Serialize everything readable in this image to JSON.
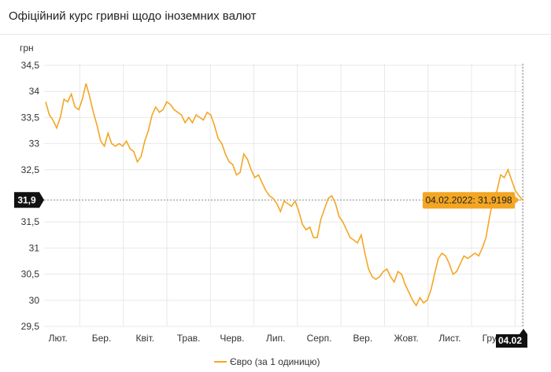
{
  "header": {
    "title": "Офіційний курс гривні щодо іноземних валют"
  },
  "chart_data": {
    "type": "line",
    "ylabel": "грн",
    "ylim": [
      29.5,
      34.5
    ],
    "y_ticks": [
      "34,5",
      "34",
      "33,5",
      "33",
      "32,5",
      "31,5",
      "31",
      "30,5",
      "30",
      "29,5"
    ],
    "y_tick_values": [
      34.5,
      34,
      33.5,
      33,
      32.5,
      31.5,
      31,
      30.5,
      30,
      29.5
    ],
    "x_ticks": [
      "Лют.",
      "Бер.",
      "Квіт.",
      "Трав.",
      "Черв.",
      "Лип.",
      "Серп.",
      "Вер.",
      "Жовт.",
      "Лист.",
      "Груд."
    ],
    "grid": true,
    "legend_position": "bottom",
    "series": [
      {
        "name": "Євро (за 1 одиницю)",
        "color": "#f4a623",
        "values": [
          33.8,
          33.55,
          33.45,
          33.3,
          33.5,
          33.85,
          33.8,
          33.95,
          33.7,
          33.65,
          33.85,
          34.15,
          33.9,
          33.6,
          33.35,
          33.05,
          32.95,
          33.2,
          33.0,
          32.95,
          33.0,
          32.95,
          33.05,
          32.9,
          32.85,
          32.65,
          32.75,
          33.05,
          33.25,
          33.55,
          33.7,
          33.6,
          33.65,
          33.8,
          33.75,
          33.65,
          33.6,
          33.55,
          33.4,
          33.5,
          33.4,
          33.55,
          33.5,
          33.45,
          33.6,
          33.55,
          33.35,
          33.1,
          33.0,
          32.8,
          32.65,
          32.6,
          32.4,
          32.45,
          32.8,
          32.7,
          32.5,
          32.35,
          32.4,
          32.25,
          32.1,
          32.0,
          31.95,
          31.85,
          31.7,
          31.9,
          31.85,
          31.8,
          31.9,
          31.7,
          31.45,
          31.35,
          31.4,
          31.2,
          31.2,
          31.55,
          31.75,
          31.95,
          32.0,
          31.85,
          31.6,
          31.5,
          31.35,
          31.2,
          31.15,
          31.1,
          31.25,
          30.9,
          30.6,
          30.45,
          30.4,
          30.45,
          30.55,
          30.6,
          30.45,
          30.35,
          30.55,
          30.5,
          30.3,
          30.15,
          30.0,
          29.9,
          30.05,
          29.95,
          30.0,
          30.2,
          30.5,
          30.8,
          30.9,
          30.85,
          30.7,
          30.5,
          30.55,
          30.7,
          30.85,
          30.8,
          30.85,
          30.9,
          30.85,
          31.0,
          31.2,
          31.6,
          31.95,
          32.1,
          32.4,
          32.35,
          32.5,
          32.3,
          32.1,
          32.0,
          31.92
        ],
        "last_label": "04.02.2022: 31,9198",
        "last_x_label": "04.02",
        "current_value_label": "31,9",
        "current_value": 31.92
      }
    ]
  }
}
